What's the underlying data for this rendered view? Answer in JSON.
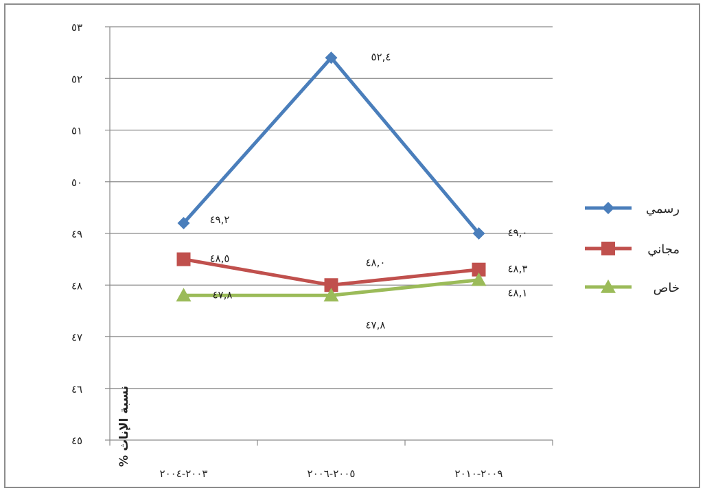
{
  "chart_data": {
    "type": "line",
    "categories": [
      "٢٠٠٣-٢٠٠٤",
      "٢٠٠٥-٢٠٠٦",
      "٢٠٠٩-٢٠١٠"
    ],
    "ylabel": "% نسبة الإناث",
    "ylim": [
      45,
      53
    ],
    "yticks": [
      45,
      46,
      47,
      48,
      49,
      50,
      51,
      52,
      53
    ],
    "ytick_labels": [
      "٤٥",
      "٤٦",
      "٤٧",
      "٤٨",
      "٤٩",
      "٥٠",
      "٥١",
      "٥٢",
      "٥٣"
    ],
    "grid": true,
    "legend_position": "right",
    "series": [
      {
        "name": "رسمي",
        "color": "#4a7ebb",
        "marker": "diamond",
        "values": [
          49.2,
          52.4,
          49.0
        ],
        "labels": [
          "٤٩,٢",
          "٥٢,٤",
          "٤٩,٠"
        ]
      },
      {
        "name": "مجاني",
        "color": "#c0504d",
        "marker": "square",
        "values": [
          48.5,
          48.0,
          48.3
        ],
        "labels": [
          "٤٨,٥",
          "٤٨,٠",
          "٤٨,٣"
        ]
      },
      {
        "name": "خاص",
        "color": "#9bbb59",
        "marker": "triangle",
        "values": [
          47.8,
          47.8,
          48.1
        ],
        "labels": [
          "٤٧,٨",
          "٤٧,٨",
          "٤٨,١"
        ]
      }
    ]
  }
}
